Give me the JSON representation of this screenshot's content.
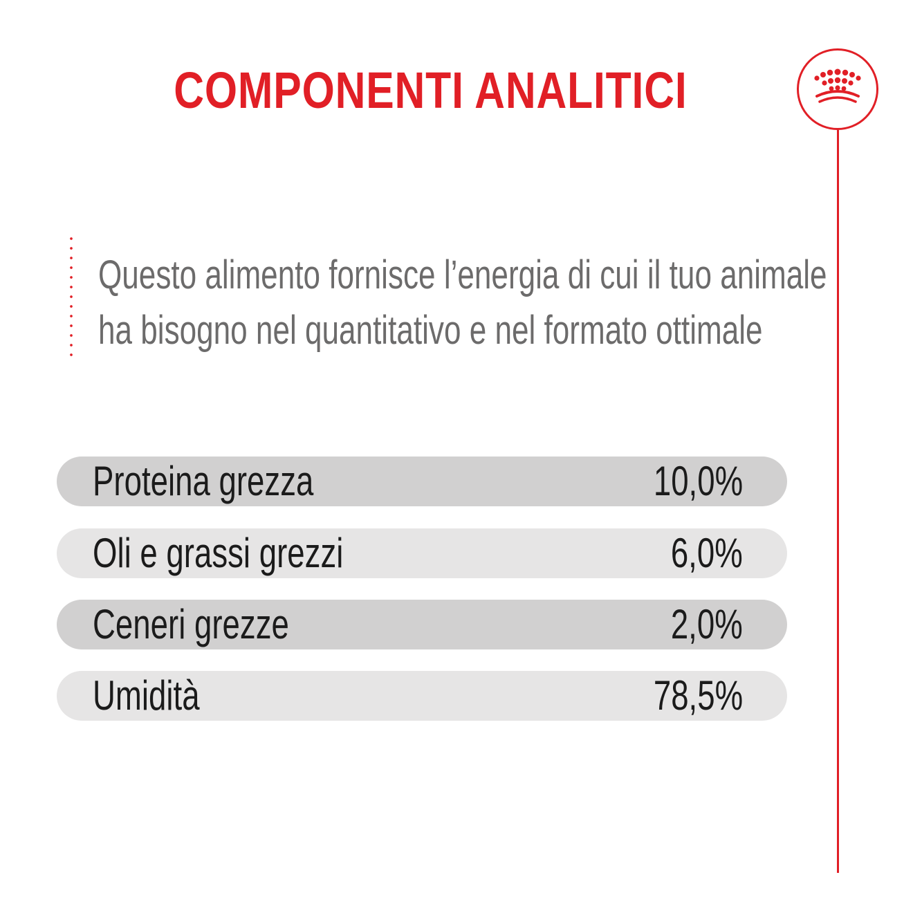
{
  "header": {
    "title": "COMPONENTI ANALITICI"
  },
  "brand": {
    "logo_icon": "crown-icon",
    "accent_color": "#e11f26"
  },
  "description": {
    "line1": "Questo alimento fornisce l’energia di cui il tuo animale",
    "line2": "ha bisogno nel quantitativo e nel formato ottimale"
  },
  "components": [
    {
      "label": "Proteina grezza",
      "value": "10,0%"
    },
    {
      "label": "Oli e grassi grezzi",
      "value": "6,0%"
    },
    {
      "label": "Ceneri grezze",
      "value": "2,0%"
    },
    {
      "label": "Umidità",
      "value": "78,5%"
    }
  ]
}
